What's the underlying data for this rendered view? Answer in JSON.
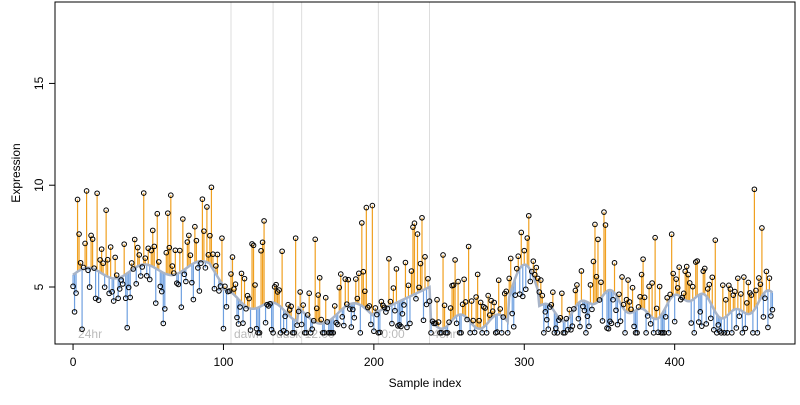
{
  "chart_data": {
    "type": "scatter",
    "xlabel": "Sample index",
    "ylabel": "Expression",
    "xlim": [
      -12,
      480
    ],
    "ylim": [
      2.2,
      19
    ],
    "x_ticks": [
      0,
      100,
      200,
      300,
      400
    ],
    "y_ticks": [
      5,
      10,
      15
    ],
    "grid": false,
    "annotation_lines": [
      {
        "x": 105,
        "label": "dawn"
      },
      {
        "x": 133,
        "label": "dusk"
      },
      {
        "x": 152,
        "label": "12:00"
      },
      {
        "x": 203,
        "label": "0:00"
      },
      {
        "x": 237,
        "label": "48hr"
      }
    ],
    "corner_label": {
      "x": 2,
      "label": "24hr"
    },
    "colors": {
      "above_fit": "#f0a020",
      "below_fit": "#6fa0e0",
      "fit_line": "#a8b4c8",
      "vline": "#dddddd",
      "points": "#000000",
      "annotation_text": "#bbbbbb"
    }
  }
}
